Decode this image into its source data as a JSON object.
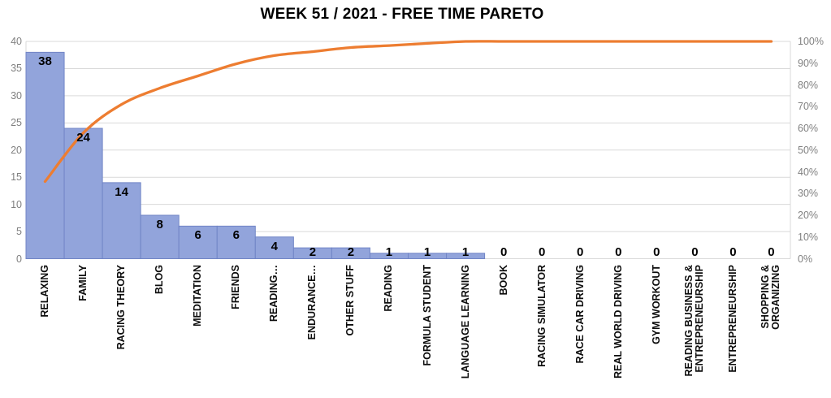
{
  "chart_data": {
    "type": "pareto (bar + cumulative line)",
    "title": "WEEK 51 / 2021 - FREE TIME PARETO",
    "categories": [
      "RELAXING",
      "FAMILY",
      "RACING THEORY",
      "BLOG",
      "MEDITATION",
      "FRIENDS",
      "READING…",
      "ENDURANCE…",
      "OTHER STUFF",
      "READING",
      "FORMULA STUDENT",
      "LANGUAGE LEARNING",
      "BOOK",
      "RACING SIMULATOR",
      "RACE CAR DRIVING",
      "REAL WORLD DRIVING",
      "GYM WORKOUT",
      "READING BUSINESS &\nENTREPRENEURSHIP",
      "ENTREPRENEURSHIP",
      "SHOPPING &\nORGANIZING"
    ],
    "series": [
      {
        "name": "bar-values",
        "type": "bar",
        "axis": "left",
        "values": [
          38,
          24,
          14,
          8,
          6,
          6,
          4,
          2,
          2,
          1,
          1,
          1,
          0,
          0,
          0,
          0,
          0,
          0,
          0,
          0
        ],
        "data_labels_shown": true
      },
      {
        "name": "cumulative-percent",
        "type": "line",
        "axis": "right",
        "smooth": true,
        "values": [
          35.5,
          57.9,
          71.0,
          78.5,
          84.1,
          89.7,
          93.5,
          95.3,
          97.2,
          98.1,
          99.1,
          100,
          100,
          100,
          100,
          100,
          100,
          100,
          100,
          100
        ]
      }
    ],
    "left_axis": {
      "range": [
        0,
        40
      ],
      "ticks": [
        0,
        5,
        10,
        15,
        20,
        25,
        30,
        35,
        40
      ]
    },
    "right_axis": {
      "range_pct": [
        0,
        100
      ],
      "ticks": [
        "0%",
        "10%",
        "20%",
        "30%",
        "40%",
        "50%",
        "60%",
        "70%",
        "80%",
        "90%",
        "100%"
      ]
    },
    "gridlines": true,
    "legend": "none",
    "colors": {
      "bar_fill": "#92A4DB",
      "bar_border": "#7185C6",
      "line": "#ED7D31",
      "gridline": "#D9D9D9",
      "axis_text": "#808080",
      "label_text": "#000000",
      "background": "#FFFFFF"
    }
  }
}
